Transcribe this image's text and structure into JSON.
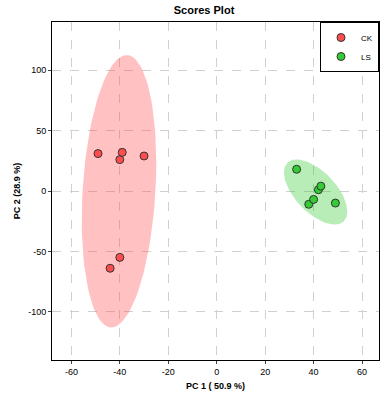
{
  "chart_data": {
    "type": "scatter",
    "title": "Scores Plot",
    "x_label": "PC 1 ( 50.9 %)",
    "y_label": "PC 2 (28.9 %)",
    "xlim": [
      -68,
      67
    ],
    "ylim": [
      -140,
      140
    ],
    "xticks": [
      -60,
      -40,
      -20,
      0,
      20,
      40,
      60
    ],
    "yticks": [
      -100,
      -50,
      0,
      50,
      100
    ],
    "grid": true,
    "legend": "top right",
    "marker": "circle",
    "series": [
      {
        "name": "CK",
        "color": "#ff4d4d",
        "x": [
          -49,
          -40,
          -39,
          -30,
          -44,
          -40
        ],
        "values": [
          31,
          26,
          32,
          29,
          -64,
          -55
        ]
      },
      {
        "name": "LS",
        "color": "#33cc33",
        "x": [
          33,
          38,
          40,
          42,
          43,
          49
        ],
        "values": [
          18,
          -11,
          -7,
          1,
          4,
          -10
        ]
      }
    ]
  }
}
